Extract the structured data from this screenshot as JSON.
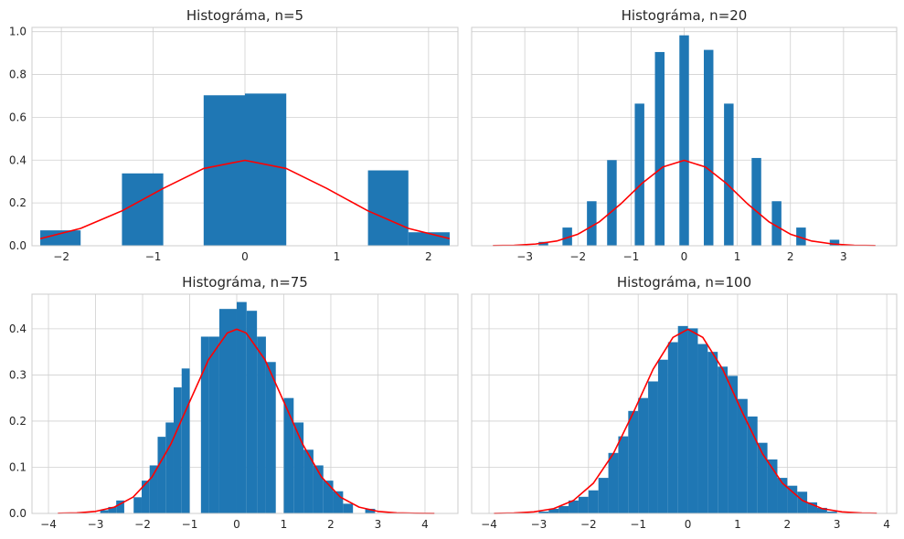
{
  "colors": {
    "bar": "#1f77b4",
    "curve": "#ff0000",
    "plot_bg": "#ffffff",
    "grid": "#d0d0d0",
    "spine": "#cccccc"
  },
  "chart_data": [
    {
      "type": "bar",
      "title": "Histográma, n=5",
      "xlim": [
        -2.32,
        2.32
      ],
      "ylim": [
        0,
        1.02
      ],
      "xticks": [
        -2,
        -1,
        0,
        1,
        2
      ],
      "xtick_labels": [
        "−2",
        "−1",
        "0",
        "1",
        "2"
      ],
      "yticks": [
        0,
        0.2,
        0.4,
        0.6,
        0.8,
        1.0
      ],
      "ytick_labels": [
        "0.0",
        "0.2",
        "0.4",
        "0.6",
        "0.8",
        "1.0"
      ],
      "show_yticklabels": true,
      "grid": true,
      "bins": [
        {
          "x0": -2.23,
          "x1": -1.79,
          "height": 0.072
        },
        {
          "x0": -1.34,
          "x1": -0.89,
          "height": 0.338
        },
        {
          "x0": -0.45,
          "x1": 0.0,
          "height": 0.703
        },
        {
          "x0": 0.0,
          "x1": 0.45,
          "height": 0.711
        },
        {
          "x0": 1.34,
          "x1": 1.78,
          "height": 0.352
        },
        {
          "x0": 1.78,
          "x1": 2.23,
          "height": 0.063
        }
      ],
      "curve": {
        "name": "normal pdf",
        "x": [
          -2.23,
          -1.79,
          -1.34,
          -0.89,
          -0.45,
          0.0,
          0.45,
          0.89,
          1.34,
          1.78,
          2.23
        ],
        "y": [
          0.033,
          0.081,
          0.163,
          0.268,
          0.361,
          0.399,
          0.361,
          0.268,
          0.163,
          0.081,
          0.033
        ]
      }
    },
    {
      "type": "bar",
      "title": "Histográma, n=20",
      "xlim": [
        -4.0,
        4.0
      ],
      "ylim": [
        0,
        1.02
      ],
      "xticks": [
        -3,
        -2,
        -1,
        0,
        1,
        2,
        3
      ],
      "xtick_labels": [
        "−3",
        "−2",
        "−1",
        "0",
        "1",
        "2",
        "3"
      ],
      "yticks": [
        0,
        0.2,
        0.4,
        0.6,
        0.8,
        1.0
      ],
      "ytick_labels": [],
      "show_yticklabels": false,
      "grid": true,
      "bins": [
        {
          "x0": -2.74,
          "x1": -2.56,
          "height": 0.018
        },
        {
          "x0": -2.29,
          "x1": -2.11,
          "height": 0.085
        },
        {
          "x0": -1.83,
          "x1": -1.65,
          "height": 0.208
        },
        {
          "x0": -1.45,
          "x1": -1.27,
          "height": 0.4
        },
        {
          "x0": -0.93,
          "x1": -0.75,
          "height": 0.664
        },
        {
          "x0": -0.55,
          "x1": -0.37,
          "height": 0.905
        },
        {
          "x0": -0.09,
          "x1": 0.09,
          "height": 0.983
        },
        {
          "x0": 0.37,
          "x1": 0.55,
          "height": 0.915
        },
        {
          "x0": 0.75,
          "x1": 0.93,
          "height": 0.664
        },
        {
          "x0": 1.27,
          "x1": 1.45,
          "height": 0.41
        },
        {
          "x0": 1.65,
          "x1": 1.83,
          "height": 0.208
        },
        {
          "x0": 2.11,
          "x1": 2.29,
          "height": 0.085
        },
        {
          "x0": 2.74,
          "x1": 2.92,
          "height": 0.028
        }
      ],
      "curve": {
        "name": "normal pdf",
        "x": [
          -3.6,
          -3.2,
          -2.8,
          -2.4,
          -2.0,
          -1.6,
          -1.2,
          -0.8,
          -0.4,
          0.0,
          0.4,
          0.8,
          1.2,
          1.6,
          2.0,
          2.4,
          2.8,
          3.2,
          3.6
        ],
        "y": [
          0.001,
          0.002,
          0.008,
          0.022,
          0.054,
          0.111,
          0.194,
          0.29,
          0.368,
          0.399,
          0.368,
          0.29,
          0.194,
          0.111,
          0.054,
          0.022,
          0.008,
          0.002,
          0.001
        ]
      }
    },
    {
      "type": "bar",
      "title": "Histográma, n=75",
      "xlim": [
        -4.35,
        4.7
      ],
      "ylim": [
        0,
        0.475
      ],
      "xticks": [
        -4,
        -3,
        -2,
        -1,
        0,
        1,
        2,
        3,
        4
      ],
      "xtick_labels": [
        "−4",
        "−3",
        "−2",
        "−1",
        "0",
        "1",
        "2",
        "3",
        "4"
      ],
      "yticks": [
        0,
        0.1,
        0.2,
        0.3,
        0.4
      ],
      "ytick_labels": [
        "0.0",
        "0.1",
        "0.2",
        "0.3",
        "0.4"
      ],
      "show_yticklabels": true,
      "grid": true,
      "bins": [
        {
          "x0": -2.9,
          "x1": -2.73,
          "height": 0.007
        },
        {
          "x0": -2.73,
          "x1": -2.56,
          "height": 0.014
        },
        {
          "x0": -2.56,
          "x1": -2.39,
          "height": 0.028
        },
        {
          "x0": -2.19,
          "x1": -2.02,
          "height": 0.035
        },
        {
          "x0": -2.02,
          "x1": -1.85,
          "height": 0.071
        },
        {
          "x0": -1.85,
          "x1": -1.68,
          "height": 0.104
        },
        {
          "x0": -1.68,
          "x1": -1.51,
          "height": 0.166
        },
        {
          "x0": -1.51,
          "x1": -1.34,
          "height": 0.197
        },
        {
          "x0": -1.34,
          "x1": -1.17,
          "height": 0.273
        },
        {
          "x0": -1.17,
          "x1": -1.0,
          "height": 0.314
        },
        {
          "x0": -0.76,
          "x1": -0.59,
          "height": 0.383
        },
        {
          "x0": -0.59,
          "x1": -0.37,
          "height": 0.383
        },
        {
          "x0": -0.37,
          "x1": 0.0,
          "height": 0.443
        },
        {
          "x0": 0.0,
          "x1": 0.21,
          "height": 0.458
        },
        {
          "x0": 0.21,
          "x1": 0.43,
          "height": 0.439
        },
        {
          "x0": 0.43,
          "x1": 0.62,
          "height": 0.383
        },
        {
          "x0": 0.62,
          "x1": 0.83,
          "height": 0.328
        },
        {
          "x0": 1.0,
          "x1": 1.21,
          "height": 0.25
        },
        {
          "x0": 1.21,
          "x1": 1.42,
          "height": 0.197
        },
        {
          "x0": 1.42,
          "x1": 1.63,
          "height": 0.138
        },
        {
          "x0": 1.63,
          "x1": 1.84,
          "height": 0.104
        },
        {
          "x0": 1.84,
          "x1": 2.05,
          "height": 0.071
        },
        {
          "x0": 2.05,
          "x1": 2.26,
          "height": 0.048
        },
        {
          "x0": 2.26,
          "x1": 2.47,
          "height": 0.021
        },
        {
          "x0": 2.73,
          "x1": 2.94,
          "height": 0.01
        }
      ],
      "curve": {
        "name": "normal pdf",
        "x": [
          -3.8,
          -3.4,
          -3.0,
          -2.6,
          -2.2,
          -1.8,
          -1.4,
          -1.0,
          -0.6,
          -0.2,
          0.0,
          0.2,
          0.6,
          1.0,
          1.4,
          1.8,
          2.2,
          2.6,
          3.0,
          3.4,
          3.8,
          4.2
        ],
        "y": [
          0.0003,
          0.0012,
          0.0044,
          0.0136,
          0.0355,
          0.079,
          0.15,
          0.242,
          0.333,
          0.391,
          0.399,
          0.391,
          0.333,
          0.242,
          0.15,
          0.079,
          0.0355,
          0.0136,
          0.0044,
          0.0012,
          0.0003,
          0.0001
        ]
      }
    },
    {
      "type": "bar",
      "title": "Histográma, n=100",
      "xlim": [
        -4.35,
        4.2
      ],
      "ylim": [
        0,
        0.475
      ],
      "xticks": [
        -4,
        -3,
        -2,
        -1,
        0,
        1,
        2,
        3,
        4
      ],
      "xtick_labels": [
        "−4",
        "−3",
        "−2",
        "−1",
        "0",
        "1",
        "2",
        "3",
        "4"
      ],
      "yticks": [
        0,
        0.1,
        0.2,
        0.3,
        0.4
      ],
      "ytick_labels": [],
      "show_yticklabels": false,
      "grid": true,
      "bins": [
        {
          "x0": -3.0,
          "x1": -2.8,
          "height": 0.004
        },
        {
          "x0": -2.8,
          "x1": -2.6,
          "height": 0.01
        },
        {
          "x0": -2.6,
          "x1": -2.4,
          "height": 0.016
        },
        {
          "x0": -2.4,
          "x1": -2.2,
          "height": 0.028
        },
        {
          "x0": -2.2,
          "x1": -2.0,
          "height": 0.036
        },
        {
          "x0": -2.0,
          "x1": -1.8,
          "height": 0.05
        },
        {
          "x0": -1.8,
          "x1": -1.6,
          "height": 0.077
        },
        {
          "x0": -1.6,
          "x1": -1.4,
          "height": 0.131
        },
        {
          "x0": -1.4,
          "x1": -1.2,
          "height": 0.167
        },
        {
          "x0": -1.2,
          "x1": -1.0,
          "height": 0.222
        },
        {
          "x0": -1.0,
          "x1": -0.8,
          "height": 0.25
        },
        {
          "x0": -0.8,
          "x1": -0.6,
          "height": 0.286
        },
        {
          "x0": -0.6,
          "x1": -0.4,
          "height": 0.333
        },
        {
          "x0": -0.4,
          "x1": -0.2,
          "height": 0.371
        },
        {
          "x0": -0.2,
          "x1": 0.0,
          "height": 0.406
        },
        {
          "x0": 0.0,
          "x1": 0.2,
          "height": 0.401
        },
        {
          "x0": 0.2,
          "x1": 0.4,
          "height": 0.367
        },
        {
          "x0": 0.4,
          "x1": 0.6,
          "height": 0.35
        },
        {
          "x0": 0.6,
          "x1": 0.8,
          "height": 0.318
        },
        {
          "x0": 0.8,
          "x1": 1.0,
          "height": 0.298
        },
        {
          "x0": 1.0,
          "x1": 1.2,
          "height": 0.248
        },
        {
          "x0": 1.2,
          "x1": 1.4,
          "height": 0.21
        },
        {
          "x0": 1.4,
          "x1": 1.6,
          "height": 0.153
        },
        {
          "x0": 1.6,
          "x1": 1.8,
          "height": 0.117
        },
        {
          "x0": 1.8,
          "x1": 2.0,
          "height": 0.077
        },
        {
          "x0": 2.0,
          "x1": 2.2,
          "height": 0.06
        },
        {
          "x0": 2.2,
          "x1": 2.4,
          "height": 0.047
        },
        {
          "x0": 2.4,
          "x1": 2.6,
          "height": 0.024
        },
        {
          "x0": 2.6,
          "x1": 2.8,
          "height": 0.012
        },
        {
          "x0": 2.8,
          "x1": 3.0,
          "height": 0.004
        }
      ],
      "curve": {
        "name": "normal pdf",
        "x": [
          -3.9,
          -3.5,
          -3.1,
          -2.7,
          -2.3,
          -1.9,
          -1.5,
          -1.1,
          -0.7,
          -0.3,
          0.0,
          0.3,
          0.7,
          1.1,
          1.5,
          1.9,
          2.3,
          2.7,
          3.1,
          3.5,
          3.8
        ],
        "y": [
          0.0002,
          0.0009,
          0.0033,
          0.0104,
          0.0283,
          0.0656,
          0.1295,
          0.2179,
          0.3123,
          0.3814,
          0.399,
          0.3814,
          0.3123,
          0.2179,
          0.1295,
          0.0656,
          0.0283,
          0.0104,
          0.0033,
          0.0009,
          0.0003
        ]
      }
    }
  ]
}
